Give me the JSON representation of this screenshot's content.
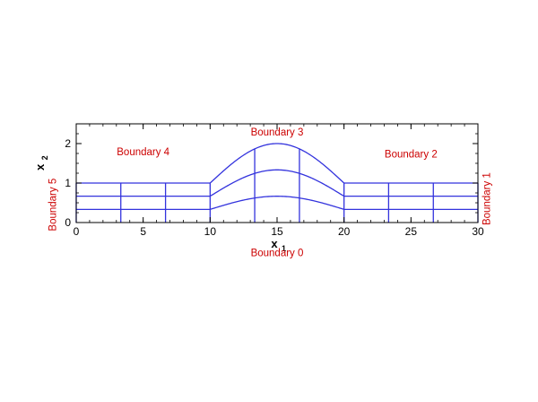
{
  "chart_data": {
    "type": "line",
    "title": "",
    "xlabel": "x",
    "xlabel_subscript": "1",
    "ylabel": "x",
    "ylabel_subscript": "2",
    "xlim": [
      0,
      30
    ],
    "ylim": [
      0,
      2.5
    ],
    "x_ticks": [
      0,
      5,
      10,
      15,
      20,
      25,
      30
    ],
    "y_ticks": [
      0,
      1,
      2
    ],
    "grid": false,
    "mesh": {
      "bump_start": 10,
      "bump_end": 20,
      "bump_peak_top": 2.0,
      "bottom_bump_height": 0.0,
      "horizontal_levels": [
        0,
        0.333,
        0.667,
        1.0
      ],
      "vertical_lines_x": [
        0,
        3.33,
        6.67,
        10,
        13.33,
        16.67,
        20,
        23.33,
        26.67,
        30
      ]
    },
    "color": "#3333dd",
    "annotations": [
      {
        "text": "Boundary 0",
        "x": 15,
        "y": -0.85
      },
      {
        "text": "Boundary 1",
        "x": 30.9,
        "y": 0.6,
        "rotate": -90
      },
      {
        "text": "Boundary 2",
        "x": 25,
        "y": 1.65
      },
      {
        "text": "Boundary 3",
        "x": 15,
        "y": 2.2
      },
      {
        "text": "Boundary 4",
        "x": 5,
        "y": 1.7
      },
      {
        "text": "Boundary 5",
        "x": -1.5,
        "y": 0.45,
        "rotate": -90
      }
    ]
  },
  "annotation_color": "#cc0000"
}
